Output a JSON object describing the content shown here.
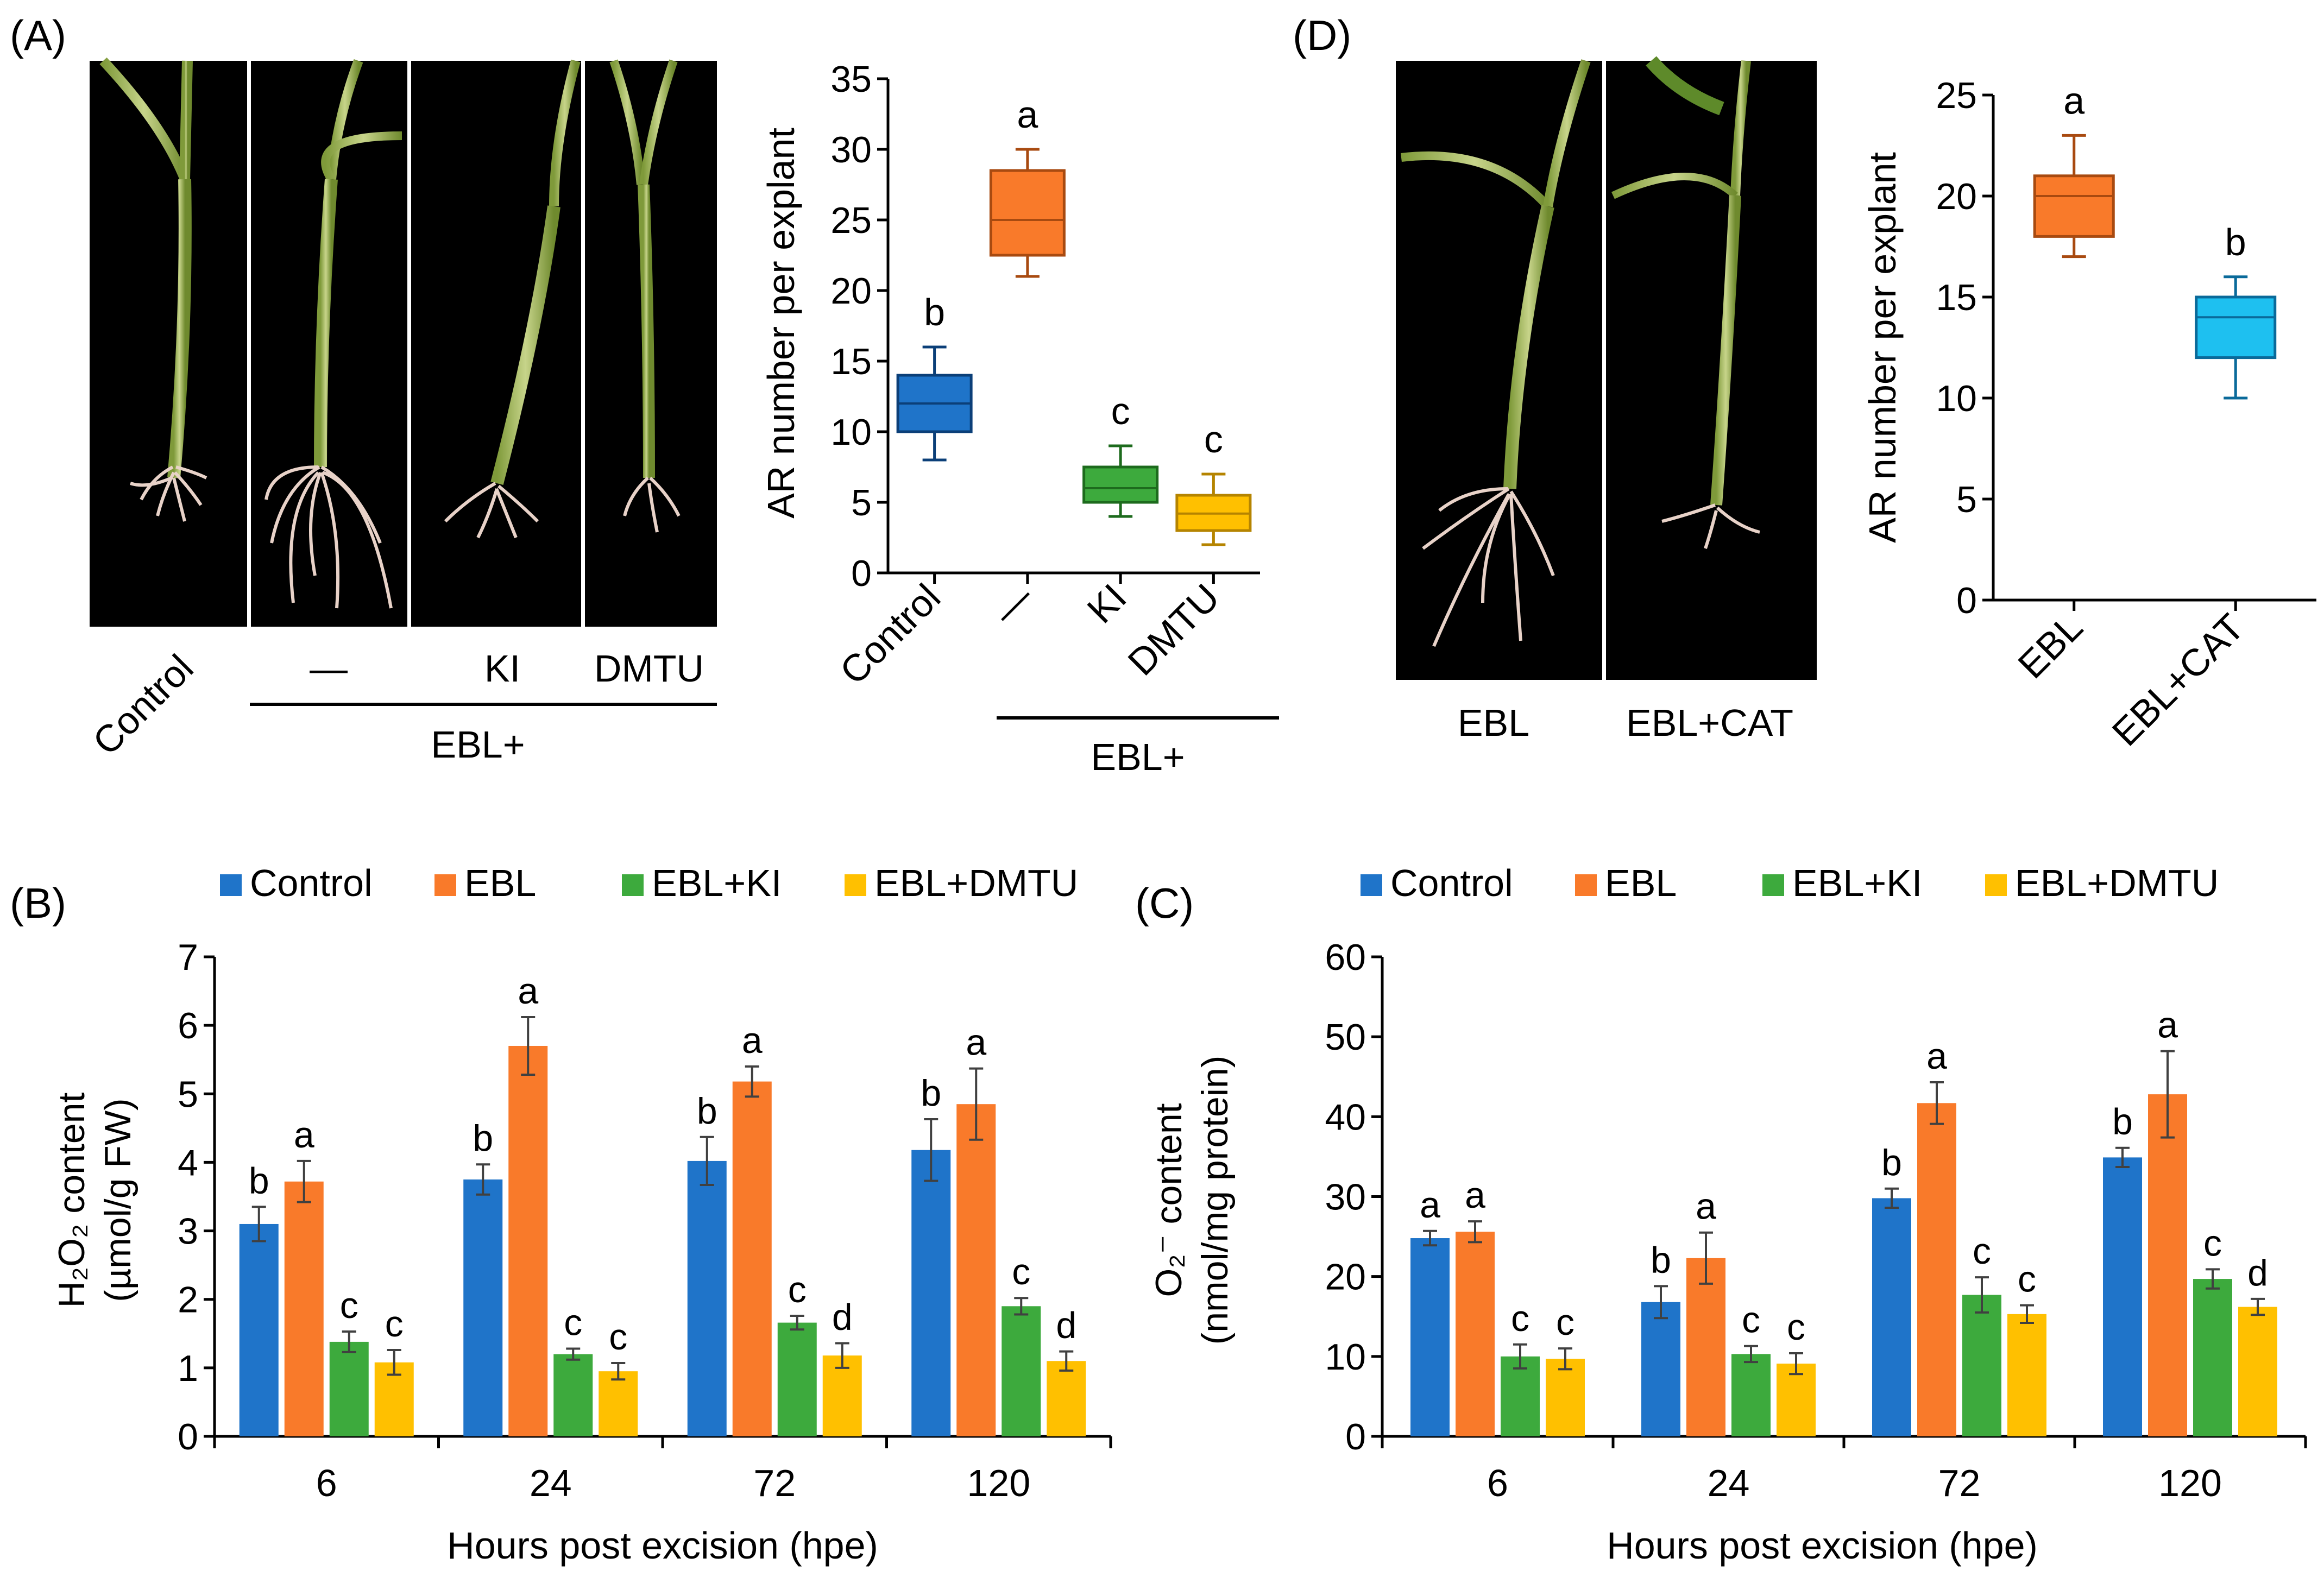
{
  "panel_labels": {
    "a": "(A)",
    "b": "(B)",
    "c": "(C)",
    "d": "(D)"
  },
  "photo_a": {
    "labels": [
      "Control",
      "—",
      "KI",
      "DMTU"
    ],
    "group_label": "EBL+"
  },
  "photo_d": {
    "labels": [
      "EBL",
      "EBL+CAT"
    ]
  },
  "legend": {
    "items": [
      {
        "label": "Control",
        "color": "#1f74c9"
      },
      {
        "label": "EBL",
        "color": "#f97a2a"
      },
      {
        "label": "EBL+KI",
        "color": "#3daa3d"
      },
      {
        "label": "EBL+DMTU",
        "color": "#ffc000"
      }
    ]
  },
  "chart_data": [
    {
      "id": "A",
      "type": "box",
      "ylabel": "AR number per explant",
      "ylim": [
        0,
        35
      ],
      "yticks": [
        0,
        5,
        10,
        15,
        20,
        25,
        30,
        35
      ],
      "categories": [
        "Control",
        "—",
        "KI",
        "DMTU"
      ],
      "group_label": "EBL+",
      "boxes": [
        {
          "category": "Control",
          "min": 8,
          "q1": 10,
          "median": 12,
          "q3": 14,
          "max": 16,
          "letter": "b",
          "color": "#1f74c9",
          "stroke": "#0b3f78"
        },
        {
          "category": "—",
          "min": 21,
          "q1": 22.5,
          "median": 25,
          "q3": 28.5,
          "max": 30,
          "letter": "a",
          "color": "#f97a2a",
          "stroke": "#a84a10"
        },
        {
          "category": "KI",
          "min": 4,
          "q1": 5,
          "median": 6,
          "q3": 7.5,
          "max": 9,
          "letter": "c",
          "color": "#3daa3d",
          "stroke": "#1d6b1d"
        },
        {
          "category": "DMTU",
          "min": 2,
          "q1": 3,
          "median": 4.2,
          "q3": 5.5,
          "max": 7,
          "letter": "c",
          "color": "#ffc000",
          "stroke": "#b58400"
        }
      ]
    },
    {
      "id": "D",
      "type": "box",
      "ylabel": "AR number per explant",
      "ylim": [
        0,
        25
      ],
      "yticks": [
        0,
        5,
        10,
        15,
        20,
        25
      ],
      "categories": [
        "EBL",
        "EBL+CAT"
      ],
      "boxes": [
        {
          "category": "EBL",
          "min": 17,
          "q1": 18,
          "median": 20,
          "q3": 21,
          "max": 23,
          "letter": "a",
          "color": "#f97a2a",
          "stroke": "#a84a10"
        },
        {
          "category": "EBL+CAT",
          "min": 10,
          "q1": 12,
          "median": 14,
          "q3": 15,
          "max": 16,
          "letter": "b",
          "color": "#1ec0f0",
          "stroke": "#0a6a9a"
        }
      ]
    },
    {
      "id": "B",
      "type": "bar",
      "ylabel_lines": [
        "H₂O₂ content",
        "(µmol/g FW)"
      ],
      "xlabel": "Hours post excision (hpe)",
      "ylim": [
        0,
        7
      ],
      "yticks": [
        0,
        1,
        2,
        3,
        4,
        5,
        6,
        7
      ],
      "categories": [
        "6",
        "24",
        "72",
        "120"
      ],
      "series": [
        {
          "name": "Control",
          "values": [
            3.1,
            3.75,
            4.02,
            4.18
          ],
          "errors": [
            0.25,
            0.22,
            0.35,
            0.45
          ],
          "letters": [
            "b",
            "b",
            "b",
            "b"
          ]
        },
        {
          "name": "EBL",
          "values": [
            3.72,
            5.7,
            5.18,
            4.85
          ],
          "errors": [
            0.3,
            0.42,
            0.22,
            0.52
          ],
          "letters": [
            "a",
            "a",
            "a",
            "a"
          ]
        },
        {
          "name": "EBL+KI",
          "values": [
            1.38,
            1.2,
            1.66,
            1.9
          ],
          "errors": [
            0.15,
            0.08,
            0.1,
            0.12
          ],
          "letters": [
            "c",
            "c",
            "c",
            "c"
          ]
        },
        {
          "name": "EBL+DMTU",
          "values": [
            1.08,
            0.95,
            1.18,
            1.1
          ],
          "errors": [
            0.18,
            0.12,
            0.18,
            0.14
          ],
          "letters": [
            "c",
            "c",
            "d",
            "d"
          ]
        }
      ]
    },
    {
      "id": "C",
      "type": "bar",
      "ylabel_lines": [
        "O₂⁻ content",
        "(nmol/mg protein)"
      ],
      "xlabel": "Hours post excision (hpe)",
      "ylim": [
        0,
        60
      ],
      "yticks": [
        0,
        10,
        20,
        30,
        40,
        50,
        60
      ],
      "categories": [
        "6",
        "24",
        "72",
        "120"
      ],
      "series": [
        {
          "name": "Control",
          "values": [
            24.8,
            16.8,
            29.8,
            34.9
          ],
          "errors": [
            0.9,
            2.0,
            1.2,
            1.2
          ],
          "letters": [
            "a",
            "b",
            "b",
            "b"
          ]
        },
        {
          "name": "EBL",
          "values": [
            25.6,
            22.3,
            41.7,
            42.8
          ],
          "errors": [
            1.3,
            3.2,
            2.6,
            5.4
          ],
          "letters": [
            "a",
            "a",
            "a",
            "a"
          ]
        },
        {
          "name": "EBL+KI",
          "values": [
            10.0,
            10.3,
            17.7,
            19.7
          ],
          "errors": [
            1.5,
            1.0,
            2.2,
            1.2
          ],
          "letters": [
            "c",
            "c",
            "c",
            "c"
          ]
        },
        {
          "name": "EBL+DMTU",
          "values": [
            9.7,
            9.1,
            15.3,
            16.2
          ],
          "errors": [
            1.3,
            1.3,
            1.1,
            1.0
          ],
          "letters": [
            "c",
            "c",
            "c",
            "d"
          ]
        }
      ]
    }
  ]
}
